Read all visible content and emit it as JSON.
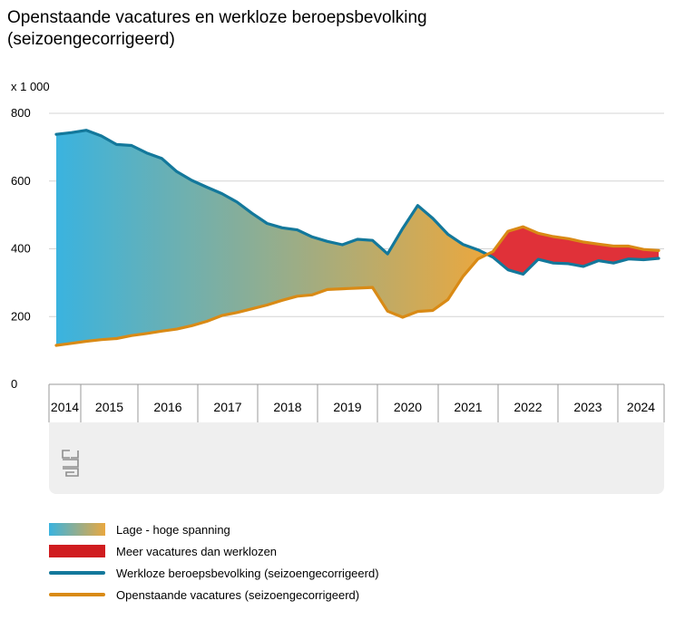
{
  "title_line1": "Openstaande vacatures en werkloze beroepsbevolking",
  "title_line2": "(seizoengecorrigeerd)",
  "unit_label": "x 1 000",
  "colors": {
    "werkloze": "#13789b",
    "vacatures": "#d98a15",
    "gradient_low": "#3ab3df",
    "gradient_high": "#e9a840",
    "overshoot": "#e03139",
    "grid": "#d4d4d4",
    "logo_area": "#efefef"
  },
  "legend": [
    {
      "label": "Lage - hoge spanning",
      "kind": "gradient"
    },
    {
      "label": "Meer vacatures dan werklozen",
      "kind": "fill",
      "color": "#d01c1f"
    },
    {
      "label": "Werkloze beroepsbevolking (seizoengecorrigeerd)",
      "kind": "line",
      "color": "#13789b"
    },
    {
      "label": "Openstaande vacatures (seizoengecorrigeerd)",
      "kind": "line",
      "color": "#d98a15"
    }
  ],
  "logo_icon": "cbs-logo-icon",
  "chart_data": {
    "type": "area",
    "title": "Openstaande vacatures en werkloze beroepsbevolking (seizoengecorrigeerd)",
    "ylabel": "x 1 000",
    "ylim": [
      0,
      800
    ],
    "yticks": [
      0,
      200,
      400,
      600,
      800
    ],
    "grid": true,
    "legend_position": "bottom",
    "year_labels": [
      "2014",
      "2015",
      "2016",
      "2017",
      "2018",
      "2019",
      "2020",
      "2021",
      "2022",
      "2023",
      "2024"
    ],
    "x": [
      "2014Q2",
      "2014Q3",
      "2014Q4",
      "2015Q1",
      "2015Q2",
      "2015Q3",
      "2015Q4",
      "2016Q1",
      "2016Q2",
      "2016Q3",
      "2016Q4",
      "2017Q1",
      "2017Q2",
      "2017Q3",
      "2017Q4",
      "2018Q1",
      "2018Q2",
      "2018Q3",
      "2018Q4",
      "2019Q1",
      "2019Q2",
      "2019Q3",
      "2019Q4",
      "2020Q1",
      "2020Q2",
      "2020Q3",
      "2020Q4",
      "2021Q1",
      "2021Q2",
      "2021Q3",
      "2021Q4",
      "2022Q1",
      "2022Q2",
      "2022Q3",
      "2022Q4",
      "2023Q1",
      "2023Q2",
      "2023Q3",
      "2023Q4",
      "2024Q1",
      "2024Q2"
    ],
    "series": [
      {
        "name": "Werkloze beroepsbevolking (seizoengecorrigeerd)",
        "values": [
          738,
          743,
          750,
          733,
          708,
          705,
          683,
          667,
          628,
          602,
          582,
          563,
          538,
          505,
          475,
          462,
          456,
          435,
          422,
          412,
          428,
          425,
          385,
          460,
          528,
          490,
          443,
          413,
          397,
          375,
          338,
          325,
          369,
          358,
          356,
          348,
          365,
          358,
          370,
          368,
          372
        ]
      },
      {
        "name": "Openstaande vacatures (seizoengecorrigeerd)",
        "values": [
          115,
          121,
          127,
          132,
          135,
          144,
          150,
          157,
          163,
          173,
          186,
          203,
          212,
          223,
          234,
          248,
          260,
          264,
          280,
          282,
          284,
          286,
          216,
          198,
          215,
          218,
          250,
          318,
          370,
          392,
          452,
          465,
          446,
          436,
          430,
          420,
          414,
          408,
          408,
          398,
          395
        ]
      }
    ]
  }
}
